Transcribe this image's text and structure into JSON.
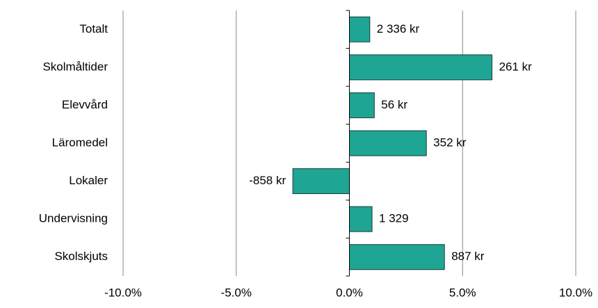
{
  "chart_data": {
    "type": "hbar",
    "categories": [
      "Totalt",
      "Skolmåltider",
      "Elevvård",
      "Läromedel",
      "Lokaler",
      "Undervisning",
      "Skolskjuts"
    ],
    "values": [
      0.9,
      6.3,
      1.1,
      3.4,
      -2.5,
      1.0,
      4.2
    ],
    "labels": [
      "2 336 kr",
      "261 kr",
      "56 kr",
      "352 kr",
      "-858 kr",
      "1 329",
      "887 kr"
    ],
    "color": "#1fa594",
    "xlim": [
      -10,
      10
    ],
    "xticks": [
      {
        "value": -10,
        "label": "-10.0%"
      },
      {
        "value": -5,
        "label": "-5.0%"
      },
      {
        "value": 0,
        "label": "0.0%"
      },
      {
        "value": 5,
        "label": "5.0%"
      },
      {
        "value": 10,
        "label": "10.0%"
      }
    ],
    "grid": true
  }
}
